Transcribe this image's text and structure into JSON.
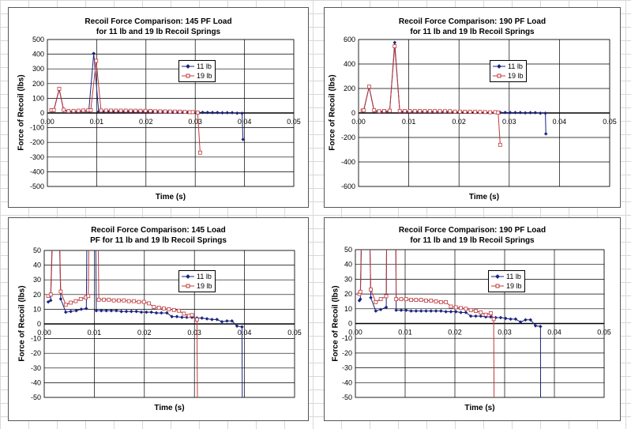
{
  "colors": {
    "series_11lb": "#1a237e",
    "series_19lb": "#c0393b",
    "grid": "#000000",
    "plot_bg": "#ffffff"
  },
  "chart_data": [
    {
      "type": "line",
      "title": "Recoil Force Comparison:  145 PF Load",
      "subtitle": "for 11 lb and 19 lb Recoil Springs",
      "xlabel": "Time (s)",
      "ylabel": "Force of Recoil (lbs)",
      "xlim": [
        0,
        0.05
      ],
      "ylim": [
        -500,
        500
      ],
      "xticks": [
        "0.00",
        "0.01",
        "0.02",
        "0.03",
        "0.04",
        "0.05"
      ],
      "yticks": [
        "500",
        "400",
        "300",
        "200",
        "100",
        "0",
        "-100",
        "-200",
        "-300",
        "-400",
        "-500"
      ],
      "grid": true,
      "legend": "center-right",
      "dataset": "145"
    },
    {
      "type": "line",
      "title": "Recoil Force Comparison:  190 PF Load",
      "subtitle": "for 11 lb and 19 lb Recoil Springs",
      "xlabel": "Time (s)",
      "ylabel": "Force of Recoil (lbs)",
      "xlim": [
        0,
        0.05
      ],
      "ylim": [
        -600,
        600
      ],
      "xticks": [
        "0.00",
        "0.01",
        "0.02",
        "0.03",
        "0.04",
        "0.05"
      ],
      "yticks": [
        "600",
        "400",
        "200",
        "0",
        "-200",
        "-400",
        "-600"
      ],
      "grid": true,
      "legend": "center-right",
      "dataset": "190"
    },
    {
      "type": "line",
      "title": "Recoil Force Comparison:  145 Load",
      "subtitle": "PF for 11 lb and 19 lb Recoil Springs",
      "xlabel": "Time (s)",
      "ylabel": "Force of Recoil (lbs)",
      "xlim": [
        0,
        0.05
      ],
      "ylim": [
        -50,
        50
      ],
      "xticks": [
        "0.00",
        "0.01",
        "0.02",
        "0.03",
        "0.04",
        "0.05"
      ],
      "yticks": [
        "50",
        "40",
        "30",
        "20",
        "10",
        "0",
        "-10",
        "-20",
        "-30",
        "-40",
        "-50"
      ],
      "grid": true,
      "legend": "center-right",
      "dataset": "145"
    },
    {
      "type": "line",
      "title": "Recoil Force Comparison:  190 PF Load",
      "subtitle": "for 11 lb and 19 lb Recoil Springs",
      "xlabel": "Time (s)",
      "ylabel": "Force of Recoil (lbs)",
      "xlim": [
        0,
        0.05
      ],
      "ylim": [
        -50,
        50
      ],
      "xticks": [
        "0.00",
        "0.01",
        "0.02",
        "0.03",
        "0.04",
        "0.05"
      ],
      "yticks": [
        "50",
        "40",
        "30",
        "20",
        "10",
        "0",
        "-10",
        "-20",
        "-30",
        "-40",
        "-50"
      ],
      "grid": true,
      "legend": "center-right",
      "dataset": "190"
    }
  ],
  "datasets": {
    "145": [
      {
        "name": "11 lb",
        "x": [
          0.0008,
          0.0013,
          0.0024,
          0.0033,
          0.0043,
          0.0053,
          0.0064,
          0.0074,
          0.0084,
          0.0094,
          0.0104,
          0.0114,
          0.0124,
          0.0134,
          0.0144,
          0.0154,
          0.0164,
          0.0174,
          0.0184,
          0.0194,
          0.0204,
          0.0214,
          0.0224,
          0.0234,
          0.0245,
          0.0255,
          0.0265,
          0.0275,
          0.0285,
          0.0295,
          0.0305,
          0.0315,
          0.0325,
          0.0335,
          0.0345,
          0.0355,
          0.0365,
          0.0375,
          0.0385,
          0.0395,
          0.0397
        ],
        "y": [
          15,
          16,
          160,
          17,
          8,
          8.5,
          9,
          10,
          10.5,
          405,
          9,
          9,
          9,
          9,
          9,
          8.5,
          8.5,
          8.5,
          8.5,
          8,
          8,
          8,
          7.5,
          7.5,
          7.5,
          5,
          5,
          4.5,
          4.5,
          4.5,
          4,
          4,
          3.5,
          3,
          3,
          1.5,
          2,
          2,
          -1.5,
          -2,
          -180
        ]
      },
      {
        "name": "19 lb",
        "x": [
          0.0008,
          0.0013,
          0.0024,
          0.0033,
          0.0043,
          0.0053,
          0.0063,
          0.0073,
          0.0083,
          0.0088,
          0.0099,
          0.0109,
          0.0119,
          0.0129,
          0.0139,
          0.0149,
          0.0159,
          0.0169,
          0.0179,
          0.0189,
          0.0199,
          0.0209,
          0.0219,
          0.0229,
          0.0239,
          0.0249,
          0.0259,
          0.0269,
          0.0279,
          0.0289,
          0.0295,
          0.0305,
          0.031
        ],
        "y": [
          19,
          20,
          165,
          22,
          13,
          14.5,
          15.5,
          17,
          18,
          19,
          355,
          16.5,
          16.5,
          16.5,
          16,
          16,
          16,
          15.5,
          15.5,
          15,
          15,
          14,
          11.5,
          11,
          10.5,
          10,
          9.5,
          9,
          7,
          5.5,
          6,
          3,
          -270
        ]
      }
    ],
    "190": [
      {
        "name": "11 lb",
        "x": [
          0.0008,
          0.001,
          0.0021,
          0.0031,
          0.0041,
          0.0051,
          0.0062,
          0.0072,
          0.0082,
          0.0092,
          0.0102,
          0.0112,
          0.0122,
          0.0132,
          0.0142,
          0.0152,
          0.0162,
          0.0172,
          0.0182,
          0.0192,
          0.0202,
          0.0212,
          0.0222,
          0.0232,
          0.0242,
          0.0252,
          0.0262,
          0.0272,
          0.0282,
          0.0292,
          0.0302,
          0.0312,
          0.0322,
          0.0332,
          0.0342,
          0.0352,
          0.0362,
          0.0372,
          0.0373
        ],
        "y": [
          15.5,
          16.5,
          210,
          17.5,
          8.5,
          9.5,
          11,
          575,
          9,
          9,
          9,
          8.5,
          8.5,
          8.5,
          8.5,
          8.5,
          8.5,
          8.5,
          8,
          8,
          8,
          7.5,
          7.5,
          5,
          5,
          5,
          4.5,
          4.5,
          4,
          4,
          3.5,
          3,
          3,
          1,
          2.5,
          2.5,
          -1.5,
          -2,
          -170
        ]
      },
      {
        "name": "19 lb",
        "x": [
          0.0008,
          0.001,
          0.0021,
          0.0031,
          0.0041,
          0.0051,
          0.0062,
          0.0072,
          0.0082,
          0.0092,
          0.0102,
          0.0112,
          0.0122,
          0.0132,
          0.0142,
          0.0152,
          0.0162,
          0.0172,
          0.0182,
          0.0192,
          0.0202,
          0.0212,
          0.0222,
          0.0232,
          0.0242,
          0.0252,
          0.0262,
          0.0272,
          0.0278,
          0.0282
        ],
        "y": [
          20,
          21.5,
          215,
          23,
          14.5,
          16.5,
          18.5,
          545,
          16.5,
          16.5,
          16.5,
          16,
          16,
          16,
          15.5,
          15.5,
          15,
          14.5,
          14.5,
          11.5,
          11,
          10.5,
          10,
          9,
          8.5,
          7.5,
          6,
          7,
          3,
          -260
        ]
      }
    ]
  }
}
